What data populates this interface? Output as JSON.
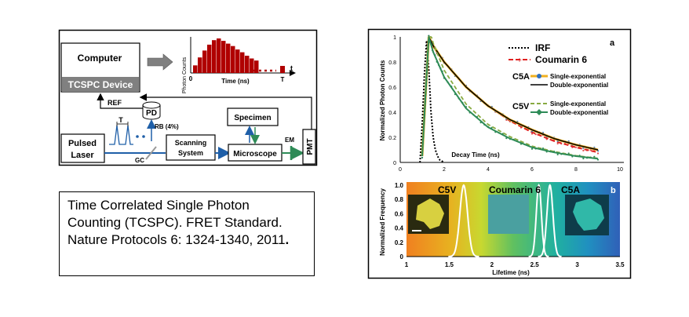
{
  "setup": {
    "computer": "Computer",
    "tcspc_device": "TCSPC Device",
    "histogram_ylabel": "Photon Counts",
    "histogram_xlabel": "Time (ns)",
    "histogram_t_axis": "t",
    "histogram_zero": "0",
    "histogram_T": "T",
    "ref": "REF",
    "pd": "PD",
    "rb": "RB (4%)",
    "period": "T",
    "pulsed_laser_line1": "Pulsed",
    "pulsed_laser_line2": "Laser",
    "gc": "GC",
    "scanning_line1": "Scanning",
    "scanning_line2": "System",
    "microscope": "Microscope",
    "specimen": "Specimen",
    "em": "EM",
    "pmt": "PMT",
    "histogram_bars": [
      0.22,
      0.45,
      0.65,
      0.82,
      0.95,
      1.0,
      0.93,
      0.85,
      0.78,
      0.68,
      0.6,
      0.5,
      0.42,
      0.36
    ],
    "colors": {
      "bar": "#b00000",
      "arrow_blue": "#1f5fa8",
      "arrow_green": "#2e8b57",
      "gray_band": "#808080"
    }
  },
  "caption": {
    "text": "Time Correlated Single Photon Counting (TCSPC). FRET Standard. Nature Protocols 6: 1324-1340, 2011",
    "period": "."
  },
  "decay_panel": {
    "panel_letter": "a",
    "ylabel": "Normalized Photon Counts",
    "xlabel": "Decay Time (ns)",
    "legend": {
      "irf": "IRF",
      "coumarin": "Coumarin 6",
      "c5a": "C5A",
      "c5v": "C5V",
      "single": "Single-exponential",
      "double": "Double-exponential"
    },
    "x_ticks": [
      "0",
      "2",
      "4",
      "6",
      "8",
      "10"
    ],
    "y_ticks": [
      "0",
      "0.2",
      "0.4",
      "0.6",
      "0.8",
      "1"
    ]
  },
  "lifetime_panel": {
    "panel_letter": "b",
    "ylabel": "Normalized Frequency",
    "xlabel": "Lifetime (ns)",
    "label_c5v": "C5V",
    "label_coumarin": "Coumarin 6",
    "label_c5a": "C5A",
    "x_ticks": [
      "1",
      "1.5",
      "2",
      "2.5",
      "3",
      "3.5"
    ],
    "y_ticks": [
      "0",
      "0.2",
      "0.4",
      "0.6",
      "0.8",
      "1.0"
    ]
  },
  "chart_data": [
    {
      "type": "line",
      "xlabel": "Decay Time (ns)",
      "ylabel": "Normalized Photon Counts",
      "xlim": [
        0,
        10
      ],
      "ylim": [
        0,
        1
      ],
      "series": [
        {
          "name": "IRF",
          "x": [
            0.9,
            1.0,
            1.1,
            1.2,
            1.3,
            1.4,
            1.5,
            1.6,
            1.7,
            1.8,
            1.9,
            2.0
          ],
          "y": [
            0,
            0.3,
            0.7,
            0.97,
            0.75,
            0.4,
            0.2,
            0.1,
            0.05,
            0.02,
            0.01,
            0
          ]
        },
        {
          "name": "Coumarin 6",
          "x": [
            1.0,
            1.3,
            1.5,
            2,
            3,
            4,
            5,
            6,
            7,
            8,
            9
          ],
          "y": [
            0.05,
            1.0,
            0.92,
            0.8,
            0.6,
            0.45,
            0.33,
            0.24,
            0.17,
            0.12,
            0.08
          ]
        },
        {
          "name": "C5A",
          "x": [
            1.0,
            1.3,
            1.5,
            2,
            3,
            4,
            5,
            6,
            7,
            8,
            9
          ],
          "y": [
            0.05,
            1.0,
            0.93,
            0.8,
            0.6,
            0.45,
            0.34,
            0.26,
            0.19,
            0.14,
            0.1
          ]
        },
        {
          "name": "C5V",
          "x": [
            1.0,
            1.3,
            1.5,
            2,
            3,
            4,
            5,
            6,
            7,
            8,
            9
          ],
          "y": [
            0.05,
            1.0,
            0.88,
            0.68,
            0.43,
            0.28,
            0.19,
            0.12,
            0.08,
            0.05,
            0.03
          ]
        }
      ]
    },
    {
      "type": "line",
      "xlabel": "Lifetime (ns)",
      "ylabel": "Normalized Frequency",
      "xlim": [
        1,
        3.5
      ],
      "ylim": [
        0,
        1.0
      ],
      "series": [
        {
          "name": "C5V",
          "center": 1.67,
          "width": 0.045
        },
        {
          "name": "Coumarin 6",
          "center": 2.55,
          "width": 0.03
        },
        {
          "name": "C5A",
          "center": 2.68,
          "width": 0.035
        }
      ]
    }
  ]
}
